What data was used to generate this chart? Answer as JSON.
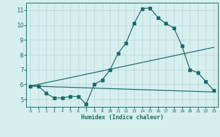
{
  "xlabel": "Humidex (Indice chaleur)",
  "bg_color": "#d6eeed",
  "line_color": "#1a6b6b",
  "grid_color": "#b8d8d8",
  "xlim": [
    -0.5,
    23.5
  ],
  "ylim": [
    4.5,
    11.5
  ],
  "yticks": [
    5,
    6,
    7,
    8,
    9,
    10,
    11
  ],
  "xticks": [
    0,
    1,
    2,
    3,
    4,
    5,
    6,
    7,
    8,
    9,
    10,
    11,
    12,
    13,
    14,
    15,
    16,
    17,
    18,
    19,
    20,
    21,
    22,
    23
  ],
  "series1_x": [
    0,
    1,
    2,
    3,
    4,
    5,
    6,
    7,
    8,
    9,
    10,
    11,
    12,
    13,
    14,
    15,
    16,
    17,
    18,
    19,
    20,
    21,
    22,
    23
  ],
  "series1_y": [
    5.9,
    5.9,
    5.4,
    5.1,
    5.1,
    5.2,
    5.2,
    4.7,
    6.0,
    6.3,
    7.0,
    8.1,
    8.8,
    10.1,
    11.1,
    11.15,
    10.5,
    10.1,
    9.8,
    8.6,
    7.0,
    6.8,
    6.2,
    5.6
  ],
  "series2_x": [
    0,
    23
  ],
  "series2_y": [
    5.9,
    8.5
  ],
  "series3_x": [
    0,
    23
  ],
  "series3_y": [
    5.9,
    5.5
  ]
}
